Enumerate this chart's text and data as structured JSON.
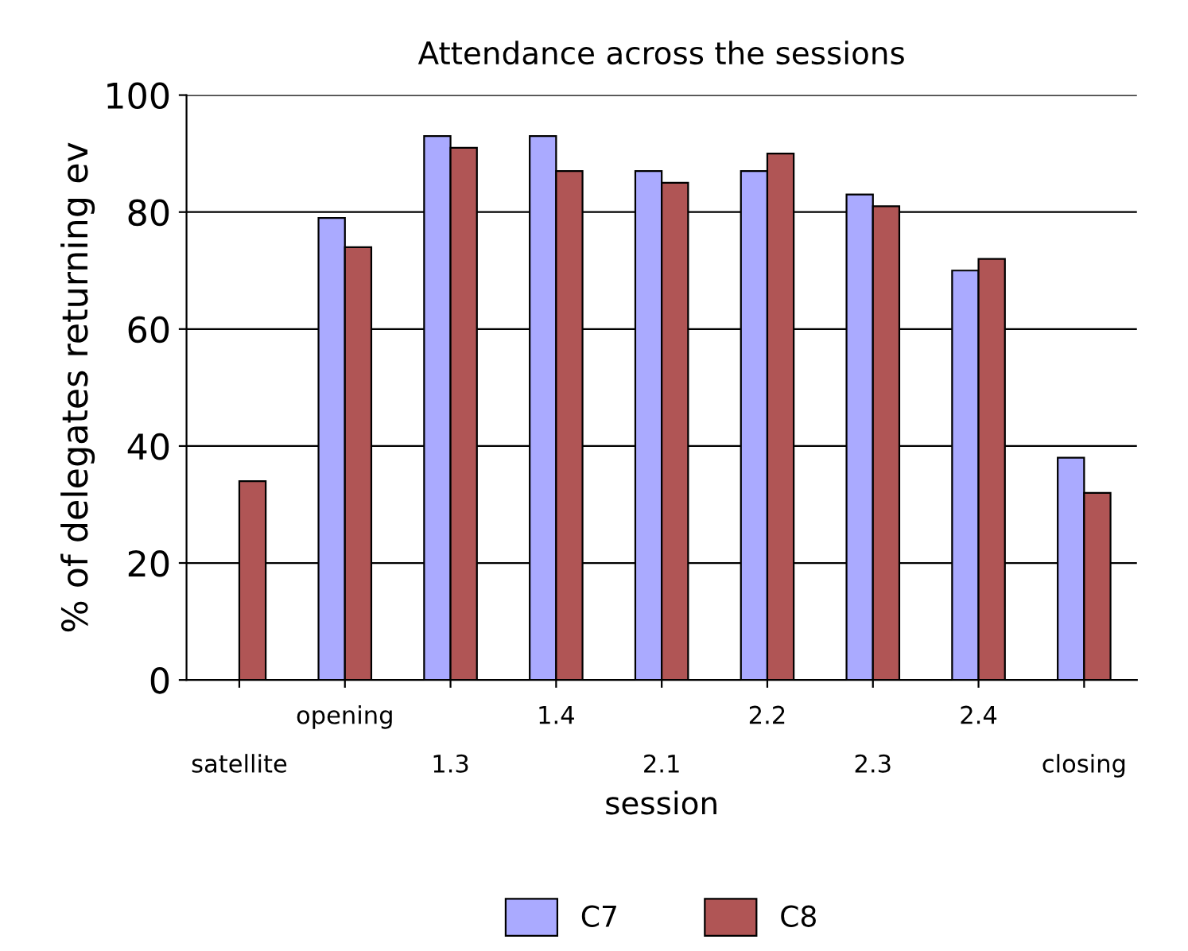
{
  "chart_data": {
    "type": "bar",
    "title": "Attendance across the sessions",
    "xlabel": "session",
    "ylabel": "% of delegates returning ev",
    "categories": [
      "satellite",
      "opening",
      "1.3",
      "1.4",
      "2.1",
      "2.2",
      "2.3",
      "2.4",
      "closing"
    ],
    "series": [
      {
        "name": "C7",
        "color": "#aaaaff",
        "values": [
          null,
          79,
          93,
          93,
          87,
          87,
          83,
          70,
          38
        ]
      },
      {
        "name": "C8",
        "color": "#b05555",
        "values": [
          34,
          74,
          91,
          87,
          85,
          90,
          81,
          72,
          32
        ]
      }
    ],
    "ylim": [
      0,
      100
    ],
    "yticks": [
      0,
      20,
      40,
      60,
      80,
      100
    ],
    "grid": "y",
    "legend": "bottom"
  }
}
